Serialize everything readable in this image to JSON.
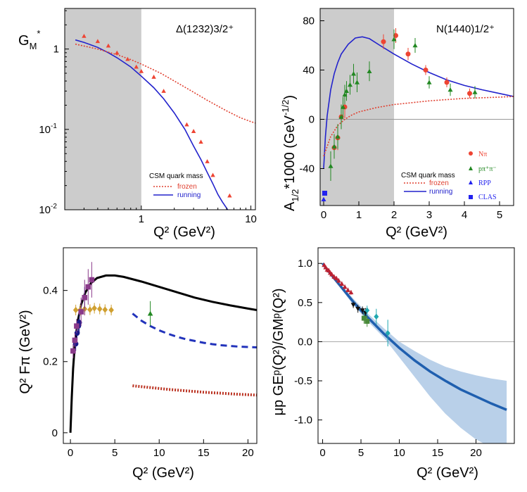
{
  "chart_data": [
    {
      "type": "scatter",
      "panel": "top-left",
      "title": "Δ(1232)3/2⁺",
      "ylabel_main": "G",
      "ylabel_sub": "M",
      "ylabel_sup": "*",
      "xlabel": "Q² (GeV²)",
      "xscale": "log",
      "yscale": "log",
      "xlim": [
        0.2,
        11
      ],
      "ylim": [
        0.01,
        3.2
      ],
      "shaded_x": [
        0.2,
        1.0
      ],
      "xticks": [
        {
          "v": 1,
          "label": "1"
        },
        {
          "v": 10,
          "label": "10"
        }
      ],
      "yticks": [
        {
          "v": 1,
          "label": "1",
          "sup": ""
        },
        {
          "v": 0.1,
          "label": "10",
          "sup": "-1"
        },
        {
          "v": 0.01,
          "label": "10",
          "sup": "-2"
        }
      ],
      "legend": {
        "heading": "CSM quark mass",
        "entries": [
          "frozen",
          "running"
        ]
      },
      "series": [
        {
          "name": "running",
          "kind": "line",
          "color": "#2222cc",
          "dash": "",
          "x": [
            0.25,
            0.3,
            0.4,
            0.5,
            0.6,
            0.8,
            1.0,
            1.3,
            1.6,
            2.0,
            2.5,
            3.0,
            3.5,
            4.0,
            4.5,
            5.0,
            5.5,
            6.0,
            6.3
          ],
          "y": [
            1.3,
            1.21,
            1.05,
            0.9,
            0.78,
            0.6,
            0.46,
            0.33,
            0.24,
            0.16,
            0.1,
            0.062,
            0.042,
            0.029,
            0.021,
            0.0155,
            0.0125,
            0.0105,
            0.0095
          ]
        },
        {
          "name": "frozen",
          "kind": "line",
          "color": "#e04030",
          "dash": "2,2",
          "x": [
            0.25,
            0.4,
            0.6,
            0.8,
            1.0,
            1.5,
            2.0,
            3.0,
            4.0,
            6.0,
            8.0,
            10.0,
            11.0
          ],
          "y": [
            1.15,
            1.0,
            0.85,
            0.74,
            0.65,
            0.5,
            0.4,
            0.29,
            0.23,
            0.17,
            0.14,
            0.125,
            0.12
          ]
        },
        {
          "name": "data",
          "kind": "triangles",
          "color": "#ee4433",
          "x": [
            0.3,
            0.4,
            0.5,
            0.6,
            0.75,
            0.9,
            1.0,
            1.3,
            1.6,
            2.6,
            3.0,
            3.5,
            4.0,
            4.5,
            6.4
          ],
          "y": [
            1.45,
            1.25,
            1.1,
            0.9,
            0.75,
            0.6,
            0.53,
            0.45,
            0.3,
            0.115,
            0.095,
            0.07,
            0.04,
            0.027,
            0.015
          ]
        }
      ]
    },
    {
      "type": "scatter",
      "panel": "top-right",
      "title": "N(1440)1/2⁺",
      "ylabel": "A₁/₂*1000 (GeV⁻¹/²)",
      "ylabel_main": "A",
      "ylabel_sub": "1/2",
      "ylabel_rest": "*1000 (GeV",
      "ylabel_sup": "-1/2",
      "ylabel_end": ")",
      "xlabel": "Q² (GeV²)",
      "xlim": [
        -0.1,
        5.4
      ],
      "ylim": [
        -70,
        90
      ],
      "shaded_x": [
        -0.1,
        2.0
      ],
      "xticks": [
        0,
        1,
        2,
        3,
        4,
        5
      ],
      "yticks": [
        -40,
        0,
        40,
        80
      ],
      "legend": {
        "heading": "CSM quark mass",
        "entries": [
          "frozen",
          "running"
        ]
      },
      "data_legend": [
        {
          "label": "Nπ",
          "color": "#ee4433",
          "marker": "circle"
        },
        {
          "label": "pπ⁺π⁻",
          "color": "#228822",
          "marker": "triangle"
        },
        {
          "label": "RPP",
          "color": "#2222ee",
          "marker": "triangle"
        },
        {
          "label": "CLAS",
          "color": "#2222ee",
          "marker": "square"
        }
      ],
      "series": [
        {
          "name": "running",
          "kind": "line",
          "color": "#2222cc",
          "dash": "",
          "x": [
            0,
            0.05,
            0.1,
            0.2,
            0.3,
            0.4,
            0.5,
            0.7,
            0.9,
            1.1,
            1.3,
            1.6,
            2.0,
            2.5,
            3.0,
            3.5,
            4.0,
            4.5,
            5.0,
            5.4
          ],
          "y": [
            -40,
            -14,
            3,
            24,
            37,
            46,
            53,
            61,
            66,
            67,
            65.5,
            60,
            53,
            45,
            38,
            32,
            27.5,
            24,
            21,
            18.5
          ]
        },
        {
          "name": "frozen",
          "kind": "line",
          "color": "#e04030",
          "dash": "2,2",
          "x": [
            0,
            0.2,
            0.4,
            0.6,
            0.8,
            1.0,
            1.5,
            2.0,
            2.5,
            3.0,
            3.5,
            4.0,
            4.5,
            5.0,
            5.4
          ],
          "y": [
            -30,
            -14,
            -5,
            0,
            3.5,
            6,
            9.5,
            12,
            13.5,
            15,
            16,
            17,
            17.5,
            18,
            18.5
          ]
        },
        {
          "name": "Nπ",
          "kind": "circles",
          "color": "#ee4433",
          "x": [
            0.3,
            0.4,
            0.5,
            0.6,
            1.7,
            2.05,
            2.4,
            2.9,
            3.5,
            4.15
          ],
          "y": [
            -23,
            -15,
            2,
            10,
            63,
            68,
            53,
            40,
            30,
            21
          ],
          "err": [
            8,
            10,
            10,
            9,
            6,
            6,
            5,
            4,
            4,
            4
          ]
        },
        {
          "name": "pπ⁺π⁻",
          "kind": "triangles",
          "color": "#228822",
          "x": [
            0.2,
            0.3,
            0.4,
            0.5,
            0.55,
            0.6,
            0.65,
            0.75,
            0.85,
            0.95,
            1.3,
            2.0,
            2.6,
            3.0,
            3.6,
            4.3
          ],
          "y": [
            -38,
            -22,
            -14,
            2,
            10,
            20,
            23,
            28,
            37,
            30,
            39,
            65,
            60,
            30,
            24,
            22
          ],
          "err": [
            12,
            10,
            10,
            10,
            8,
            8,
            8,
            8,
            8,
            8,
            8,
            8,
            6,
            5,
            5,
            5
          ]
        },
        {
          "name": "RPP",
          "kind": "triangles",
          "color": "#2222ee",
          "x": [
            0.0
          ],
          "y": [
            -65
          ],
          "err": [
            0
          ]
        },
        {
          "name": "CLAS",
          "kind": "squares",
          "color": "#2222ee",
          "x": [
            0.03
          ],
          "y": [
            -60
          ],
          "err": [
            0
          ]
        }
      ]
    },
    {
      "type": "scatter",
      "panel": "bottom-left",
      "ylabel": "Q² Fπ (GeV²)",
      "xlabel": "Q² (GeV²)",
      "xlim": [
        -0.8,
        21
      ],
      "ylim": [
        -0.03,
        0.52
      ],
      "xticks": [
        0,
        5,
        10,
        15,
        20
      ],
      "yticks": [
        0,
        0.2,
        0.4
      ],
      "series": [
        {
          "name": "theory",
          "kind": "line",
          "color": "#000000",
          "dash": "",
          "width": 3,
          "x": [
            0,
            0.15,
            0.3,
            0.5,
            0.8,
            1.2,
            1.7,
            2.3,
            3.0,
            4.0,
            5.0,
            6.0,
            8.0,
            10.0,
            12.0,
            14.0,
            16.0,
            18.0,
            20.0,
            21.0
          ],
          "y": [
            0,
            0.1,
            0.18,
            0.25,
            0.31,
            0.36,
            0.395,
            0.42,
            0.435,
            0.442,
            0.442,
            0.438,
            0.425,
            0.41,
            0.395,
            0.38,
            0.368,
            0.358,
            0.349,
            0.345
          ]
        },
        {
          "name": "dashed",
          "kind": "line",
          "color": "#2233bb",
          "dash": "9,6",
          "width": 3,
          "x": [
            7,
            8,
            9,
            10,
            11,
            12,
            13,
            14,
            15,
            16,
            17,
            18,
            19,
            20,
            21
          ],
          "y": [
            0.335,
            0.315,
            0.3,
            0.288,
            0.278,
            0.27,
            0.263,
            0.258,
            0.253,
            0.249,
            0.246,
            0.244,
            0.242,
            0.241,
            0.24
          ]
        },
        {
          "name": "dotted",
          "kind": "line",
          "color": "#bb3322",
          "dash": "2,2",
          "width": 4,
          "x": [
            7,
            9,
            11,
            13,
            15,
            17,
            19,
            21
          ],
          "y": [
            0.132,
            0.127,
            0.122,
            0.118,
            0.114,
            0.111,
            0.108,
            0.106
          ]
        },
        {
          "name": "gold",
          "kind": "diamonds",
          "color": "#d0a030",
          "x": [
            0.6,
            1.1,
            1.6,
            2.2,
            2.7,
            3.3,
            3.9,
            4.6
          ],
          "y": [
            0.345,
            0.345,
            0.348,
            0.346,
            0.35,
            0.348,
            0.346,
            0.345
          ],
          "err": [
            0.015,
            0.015,
            0.015,
            0.015,
            0.015,
            0.015,
            0.015,
            0.015
          ]
        },
        {
          "name": "navy",
          "kind": "circles",
          "color": "#1a1a8a",
          "x": [
            0.6,
            0.75,
            0.9,
            1.0,
            1.6
          ],
          "y": [
            0.25,
            0.28,
            0.3,
            0.31,
            0.38
          ],
          "err": [
            0.02,
            0.02,
            0.02,
            0.03,
            0.03
          ]
        },
        {
          "name": "purple",
          "kind": "squares",
          "color": "#8a3a8a",
          "x": [
            0.3,
            0.5,
            0.7,
            1.2,
            1.6,
            2.0,
            2.4
          ],
          "y": [
            0.23,
            0.26,
            0.3,
            0.34,
            0.38,
            0.41,
            0.43
          ],
          "err": [
            0.02,
            0.02,
            0.02,
            0.04,
            0.05,
            0.05,
            0.05
          ]
        },
        {
          "name": "green",
          "kind": "triangles",
          "color": "#228822",
          "x": [
            9.0
          ],
          "y": [
            0.335
          ],
          "err": [
            0.035
          ]
        }
      ]
    },
    {
      "type": "scatter",
      "panel": "bottom-right",
      "ylabel": "μp GEᵖ(Q²)/GMᵖ(Q²)",
      "xlabel": "Q² (GeV²)",
      "xlim": [
        -0.6,
        25
      ],
      "ylim": [
        -1.3,
        1.2
      ],
      "xticks": [
        0,
        5,
        10,
        15,
        20
      ],
      "yticks": [
        {
          "v": 1,
          "label": "1.0"
        },
        {
          "v": 0.5,
          "label": "0.5"
        },
        {
          "v": 0,
          "label": "0.0"
        },
        {
          "v": -0.5,
          "label": "-0.5"
        },
        {
          "v": -1,
          "label": "-1.0"
        }
      ],
      "series": [
        {
          "name": "band",
          "kind": "band",
          "color": "#a8c4e4",
          "x": [
            0,
            2,
            4,
            6,
            8,
            10,
            12,
            14,
            16,
            18,
            20,
            22,
            24
          ],
          "low": [
            1.0,
            0.73,
            0.47,
            0.25,
            0.05,
            -0.2,
            -0.45,
            -0.7,
            -0.92,
            -1.1,
            -1.25,
            -1.35,
            -1.42
          ],
          "high": [
            1.0,
            0.77,
            0.55,
            0.35,
            0.17,
            0.0,
            -0.12,
            -0.23,
            -0.32,
            -0.38,
            -0.43,
            -0.47,
            -0.5
          ]
        },
        {
          "name": "central",
          "kind": "line",
          "color": "#1f5faf",
          "dash": "",
          "width": 3.5,
          "x": [
            0,
            1,
            2,
            3,
            4,
            5,
            6,
            7,
            8,
            9,
            10,
            12,
            14,
            16,
            18,
            20,
            22,
            24
          ],
          "y": [
            1.0,
            0.87,
            0.75,
            0.63,
            0.51,
            0.4,
            0.3,
            0.2,
            0.1,
            0.01,
            -0.08,
            -0.24,
            -0.38,
            -0.5,
            -0.61,
            -0.7,
            -0.79,
            -0.87
          ]
        },
        {
          "name": "red",
          "kind": "triangles",
          "color": "#bb2233",
          "x": [
            0.2,
            0.4,
            0.6,
            0.8,
            1.0,
            1.2,
            1.5,
            1.8,
            2.1,
            2.5,
            2.9,
            3.3,
            3.7
          ],
          "y": [
            0.98,
            0.95,
            0.92,
            0.91,
            0.88,
            0.86,
            0.83,
            0.81,
            0.78,
            0.74,
            0.7,
            0.66,
            0.63
          ],
          "err": [
            0.02,
            0.02,
            0.02,
            0.03,
            0.03,
            0.03,
            0.03,
            0.03,
            0.03,
            0.03,
            0.03,
            0.03,
            0.03
          ]
        },
        {
          "name": "black",
          "kind": "invtriangles",
          "color": "#111111",
          "x": [
            4.0,
            4.6,
            5.2,
            5.6
          ],
          "y": [
            0.47,
            0.42,
            0.4,
            0.37
          ],
          "err": [
            0.04,
            0.05,
            0.05,
            0.06
          ]
        },
        {
          "name": "green",
          "kind": "squares",
          "color": "#4a8a3a",
          "x": [
            5.4,
            5.8
          ],
          "y": [
            0.3,
            0.26
          ],
          "err": [
            0.07,
            0.07
          ]
        },
        {
          "name": "teal",
          "kind": "diamonds",
          "color": "#20a8b0",
          "x": [
            5.8,
            7.0,
            8.5
          ],
          "y": [
            0.4,
            0.32,
            0.11
          ],
          "err": [
            0.06,
            0.1,
            0.17
          ]
        }
      ]
    }
  ]
}
